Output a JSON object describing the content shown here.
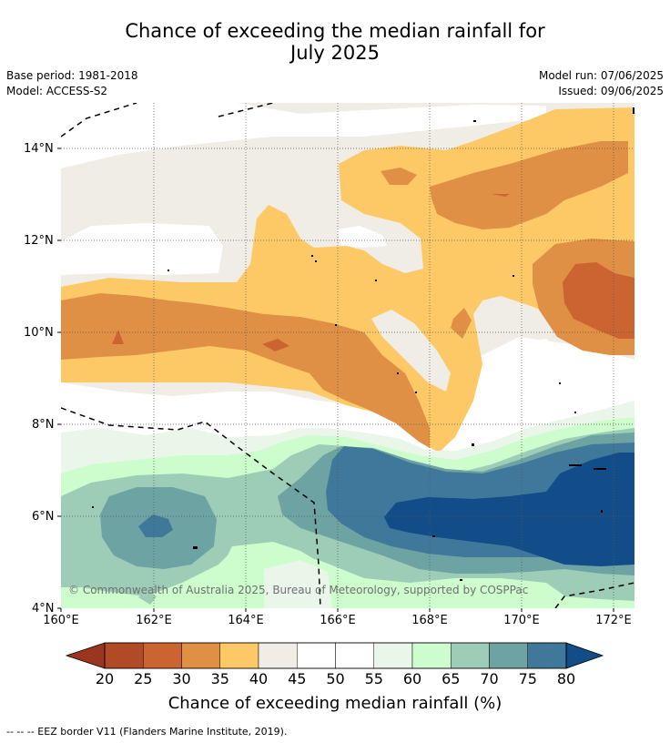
{
  "title": {
    "line1": "Chance of exceeding the median rainfall for",
    "line2": "July 2025"
  },
  "meta": {
    "base_period": "Base period: 1981-2018",
    "model": "Model: ACCESS-S2",
    "model_run": "Model run: 07/06/2025",
    "issued": "Issued: 09/06/2025"
  },
  "map": {
    "lat_labels": [
      "14°N",
      "12°N",
      "10°N",
      "8°N",
      "6°N",
      "4°N"
    ],
    "lon_labels": [
      "160°E",
      "162°E",
      "164°E",
      "166°E",
      "168°E",
      "170°E",
      "172°E"
    ],
    "copyright": "© Commonwealth of Australia 2025, Bureau of Meteorology, supported by COSPPac",
    "palette": {
      "lt20": "#9a3520",
      "20-25": "#b04a27",
      "25-30": "#cc6432",
      "30-35": "#e09045",
      "35-40": "#fdc966",
      "40-45": "#f0ece6",
      "45-55": "#ffffff",
      "55-60": "#eaf6ea",
      "60-65": "#cdfccd",
      "65-70": "#9dcdb7",
      "70-75": "#6da3a2",
      "75-80": "#40789b",
      "gt80": "#134d89"
    }
  },
  "colorbar": {
    "ticks": [
      "20",
      "25",
      "30",
      "35",
      "40",
      "45",
      "50",
      "55",
      "60",
      "65",
      "70",
      "75",
      "80"
    ],
    "colors": [
      "#b04a27",
      "#cc6432",
      "#e09045",
      "#fdc966",
      "#f0ece6",
      "#ffffff",
      "#ffffff",
      "#eaf6ea",
      "#cdfccd",
      "#9dcdb7",
      "#6da3a2",
      "#40789b"
    ],
    "under_color": "#9a3520",
    "over_color": "#134d89",
    "label": "Chance of exceeding median rainfall (%)"
  },
  "footnote": "-- -- -- EEZ border V11 (Flanders Marine Institute, 2019)."
}
